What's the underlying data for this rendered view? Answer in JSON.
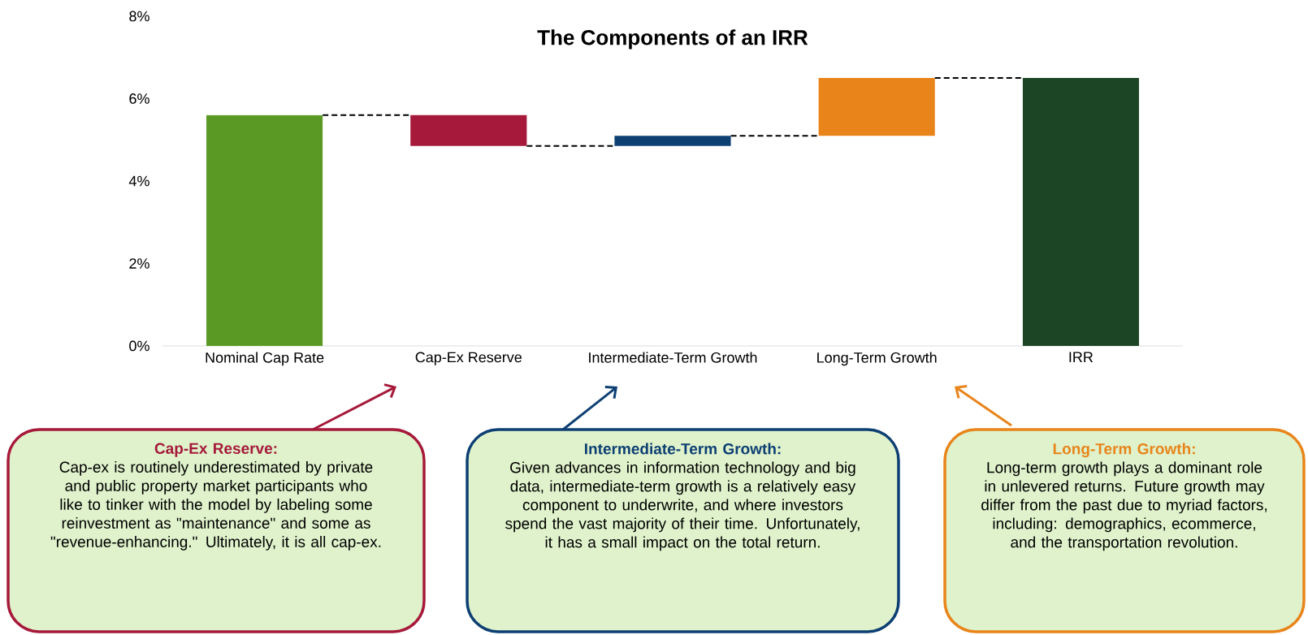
{
  "chart_data": {
    "type": "bar",
    "title": "The Components of an IRR",
    "categories": [
      "Nominal Cap Rate",
      "Cap-Ex Reserve",
      "Intermediate-Term Growth",
      "Long-Term Growth",
      "IRR"
    ],
    "values": [
      5.6,
      -0.75,
      0.25,
      1.4,
      6.5
    ],
    "base": [
      0,
      5.6,
      4.85,
      5.1,
      0
    ],
    "colors": [
      "#5a9a24",
      "#a6193a",
      "#0d3f73",
      "#e8841a",
      "#1c4526"
    ],
    "ylim": [
      0,
      8
    ],
    "yticks": [
      {
        "value": 0,
        "label": "0%"
      },
      {
        "value": 2,
        "label": "2%"
      },
      {
        "value": 4,
        "label": "4%"
      },
      {
        "value": 6,
        "label": "6%"
      },
      {
        "value": 8,
        "label": "8%"
      }
    ],
    "grid": false,
    "annotations": [
      "Cap-Ex Reserve:",
      "Cap-ex is routinely underestimated by private and public property market participants who like to tinker with the model by labeling some reinvestment as \"maintenance\" and some as \"revenue-enhancing.\" Ultimately, it is all cap-ex.",
      "Intermediate-Term Growth:",
      "Given advances in information technology and big data, intermediate-term growth is a relatively easy component to underwrite, and where investors spend the vast majority of their time.  Unfortunately, it has a small impact on the total return.",
      "Long-Term Growth:",
      "Long-term growth plays a dominant role in unlevered returns. Future growth may differ from the past due to myriad factors, including: demographics, ecommerce, and the transportation revolution."
    ]
  }
}
